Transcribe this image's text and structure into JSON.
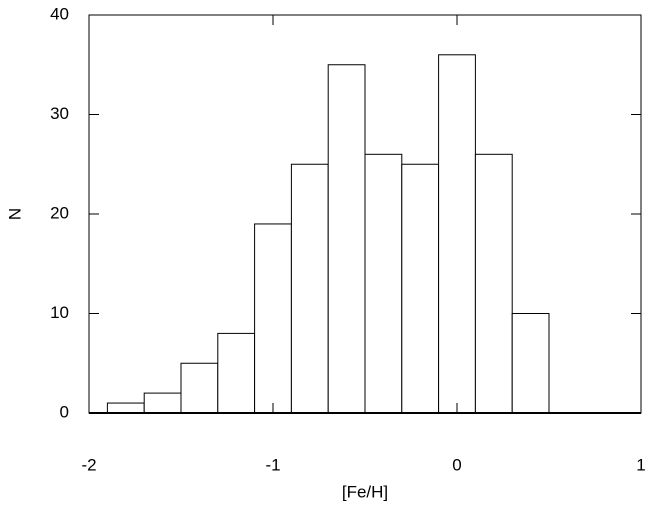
{
  "chart_data": {
    "type": "histogram",
    "xlabel": "[Fe/H]",
    "ylabel": "N",
    "bins": [
      -1.9,
      -1.7,
      -1.5,
      -1.3,
      -1.1,
      -0.9,
      -0.7,
      -0.5,
      -0.3,
      -0.1,
      0.1,
      0.3,
      0.5
    ],
    "values": [
      1,
      2,
      5,
      8,
      19,
      25,
      35,
      26,
      25,
      36,
      26,
      10
    ],
    "color": "#ffffff",
    "xlim": [
      -2,
      1
    ],
    "xticks": [
      -2,
      -1,
      0,
      1
    ],
    "ylim": [
      0,
      40
    ],
    "yticks": [
      0,
      10,
      20,
      30,
      40
    ]
  }
}
